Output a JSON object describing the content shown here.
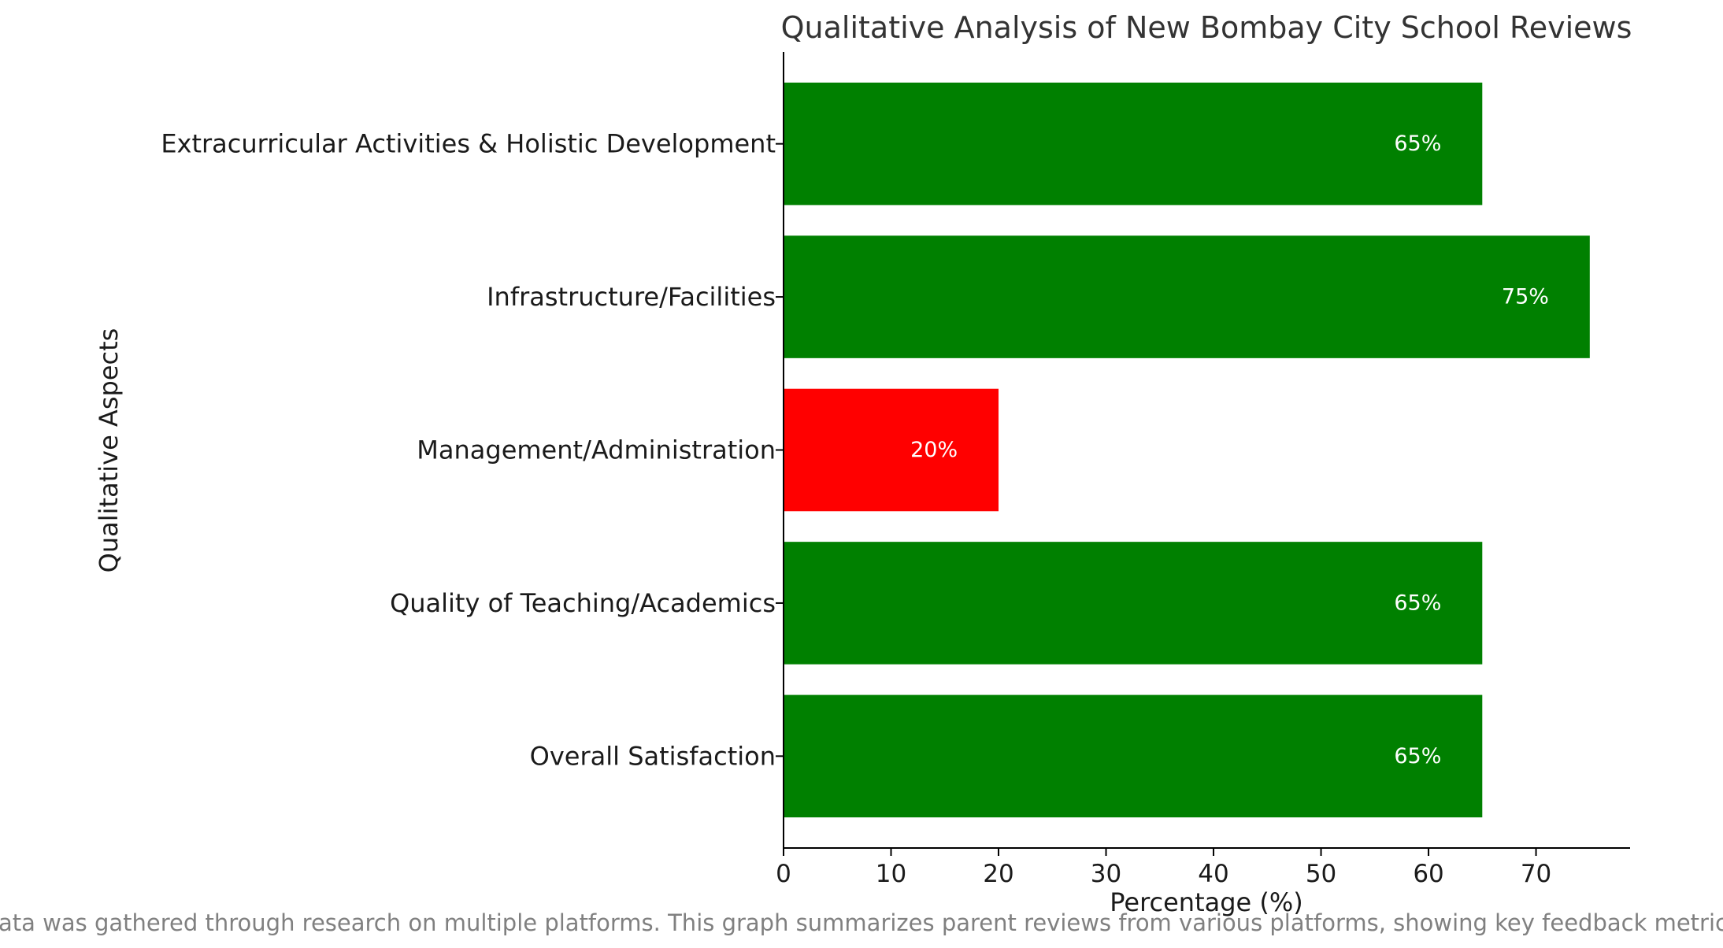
{
  "chart_data": {
    "type": "bar",
    "orientation": "horizontal",
    "title": "Qualitative Analysis of New Bombay City School Reviews",
    "xlabel": "Percentage (%)",
    "ylabel": "Qualitative Aspects",
    "xlim": [
      0,
      78.75
    ],
    "xticks": [
      0,
      10,
      20,
      30,
      40,
      50,
      60,
      70
    ],
    "grid": false,
    "categories": [
      "Overall Satisfaction",
      "Quality of Teaching/Academics",
      "Management/Administration",
      "Infrastructure/Facilities",
      "Extracurricular Activities & Holistic Development"
    ],
    "values": [
      65,
      65,
      20,
      75,
      65
    ],
    "bar_colors": [
      "#008000",
      "#008000",
      "#ff0000",
      "#008000",
      "#008000"
    ],
    "data_labels": [
      "65%",
      "65%",
      "20%",
      "75%",
      "65%"
    ],
    "footnote": "Data was gathered through research on multiple platforms. This graph summarizes parent reviews from various platforms, showing key feedback metrics."
  }
}
